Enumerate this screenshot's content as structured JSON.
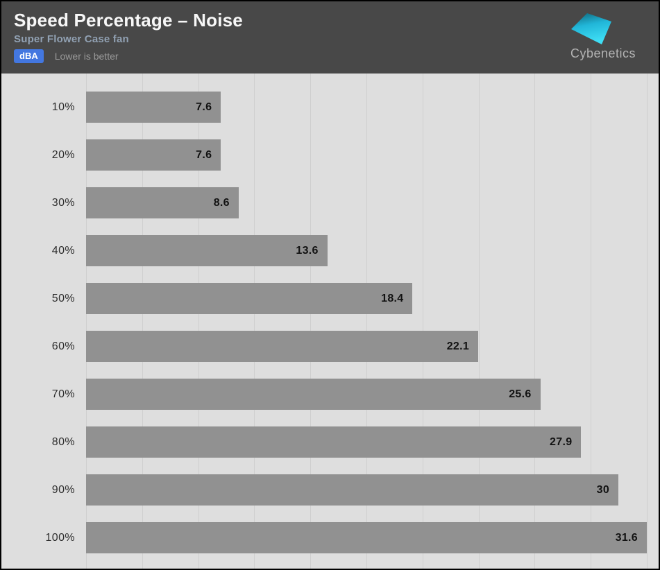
{
  "header": {
    "title": "Speed Percentage – Noise",
    "subtitle": "Super Flower Case fan",
    "unit_badge": "dBA",
    "note": "Lower is better"
  },
  "logo": {
    "brand": "Cybenetics"
  },
  "colors": {
    "header_bg": "#484848",
    "badge_blue": "#4377e0",
    "subtitle_bluegray": "#91a1b3",
    "plot_bg": "#dedede",
    "gridline": "#cfcfcf",
    "bar_gray": "#919191",
    "logo_cyan_bright": "#3cd9f2",
    "logo_cyan_dark": "#0f6478"
  },
  "chart_data": {
    "type": "bar",
    "orientation": "horizontal",
    "title": "Speed Percentage – Noise",
    "subtitle": "Super Flower Case fan",
    "unit": "dBA",
    "note": "Lower is better",
    "categories": [
      "10%",
      "20%",
      "30%",
      "40%",
      "50%",
      "60%",
      "70%",
      "80%",
      "90%",
      "100%"
    ],
    "values": [
      7.6,
      7.6,
      8.6,
      13.6,
      18.4,
      22.1,
      25.6,
      27.9,
      30,
      31.6
    ],
    "xlim": [
      0,
      31.6
    ],
    "gridline_divisions": 10,
    "grid": true,
    "legend": null,
    "value_labels_inside_bars": true
  }
}
